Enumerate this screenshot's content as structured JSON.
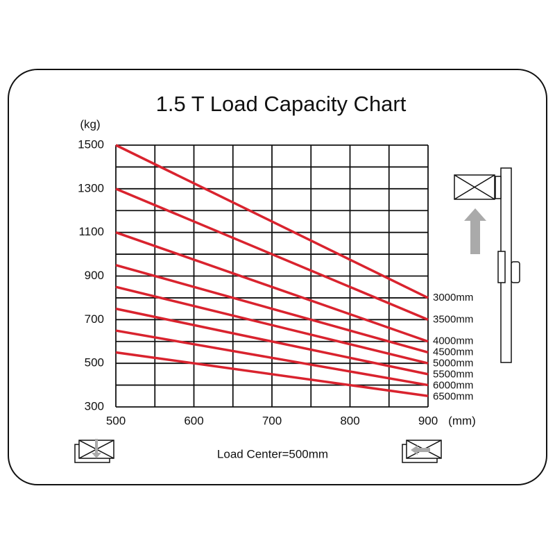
{
  "chart_data": {
    "type": "line",
    "title": "1.5 T Load Capacity Chart",
    "y_unit": "(kg)",
    "x_unit": "(mm)",
    "note": "Load Center=500mm",
    "x": [
      500,
      900
    ],
    "xlim": [
      500,
      900
    ],
    "xticks": [
      500,
      600,
      700,
      800,
      900
    ],
    "x_minor_ticks": [
      550,
      650,
      750,
      850
    ],
    "ylim": [
      300,
      1500
    ],
    "yticks": [
      300,
      500,
      700,
      900,
      1100,
      1300,
      1500
    ],
    "y_minor_ticks": [
      400,
      600,
      800,
      1000,
      1200,
      1400
    ],
    "grid": true,
    "series": [
      {
        "name": "3000mm",
        "color": "#d9232e",
        "values": [
          1500,
          800
        ]
      },
      {
        "name": "3500mm",
        "color": "#d9232e",
        "values": [
          1300,
          700
        ]
      },
      {
        "name": "4000mm",
        "color": "#d9232e",
        "values": [
          1100,
          600
        ]
      },
      {
        "name": "4500mm",
        "color": "#d9232e",
        "values": [
          950,
          550
        ]
      },
      {
        "name": "5000mm",
        "color": "#d9232e",
        "values": [
          850,
          500
        ]
      },
      {
        "name": "5500mm",
        "color": "#d9232e",
        "values": [
          750,
          450
        ]
      },
      {
        "name": "6000mm",
        "color": "#d9232e",
        "values": [
          650,
          400
        ]
      },
      {
        "name": "6500mm",
        "color": "#d9232e",
        "values": [
          550,
          350
        ]
      }
    ]
  }
}
